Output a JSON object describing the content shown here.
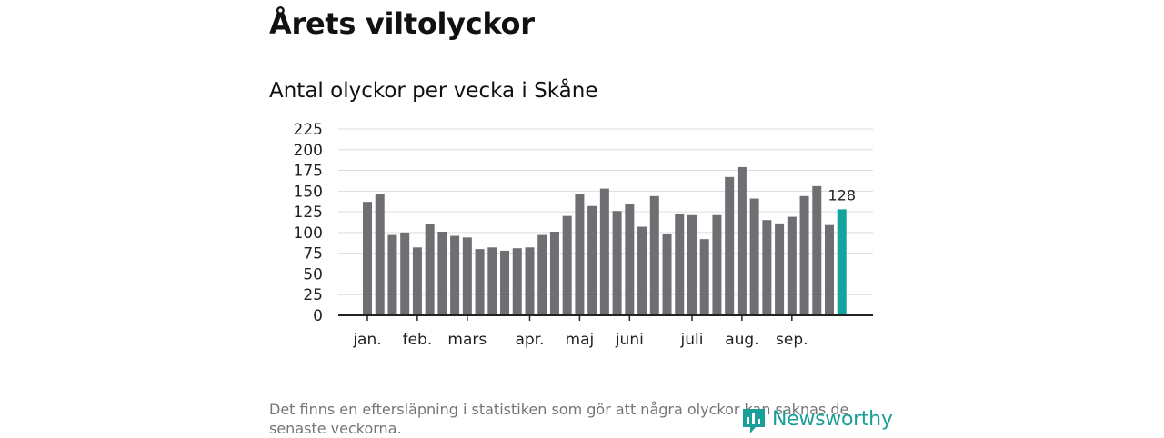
{
  "title": "Årets viltolyckor",
  "subtitle": "Antal olyckor per vecka i Skåne",
  "footnote": "Det finns en eftersläpning i statistiken som gör att några olyckor kan saknas de senaste veckorna.",
  "logo": {
    "text": "Newsworthy",
    "icon": "newsworthy-logo-icon"
  },
  "colors": {
    "bar": "#6e6e73",
    "highlight": "#13a59b",
    "grid": "#dddddd",
    "axis": "#222222"
  },
  "chart_data": {
    "type": "bar",
    "title": "Antal olyckor per vecka i Skåne",
    "xlabel": "",
    "ylabel": "",
    "ylim": [
      0,
      225
    ],
    "yticks": [
      0,
      25,
      50,
      75,
      100,
      125,
      150,
      175,
      200,
      225
    ],
    "grid": true,
    "categories": [
      "1",
      "2",
      "3",
      "4",
      "5",
      "6",
      "7",
      "8",
      "9",
      "10",
      "11",
      "12",
      "13",
      "14",
      "15",
      "16",
      "17",
      "18",
      "19",
      "20",
      "21",
      "22",
      "23",
      "24",
      "25",
      "26",
      "27",
      "28",
      "29",
      "30",
      "31",
      "32",
      "33",
      "34",
      "35",
      "36",
      "37",
      "38",
      "39"
    ],
    "values": [
      137,
      147,
      97,
      100,
      82,
      110,
      101,
      96,
      94,
      80,
      82,
      78,
      81,
      82,
      97,
      101,
      120,
      147,
      132,
      153,
      126,
      134,
      107,
      144,
      98,
      123,
      121,
      92,
      121,
      167,
      179,
      141,
      115,
      111,
      119,
      144,
      156,
      109,
      128
    ],
    "highlight_index": 38,
    "highlight_label": "128",
    "month_labels": [
      {
        "label": "jan.",
        "week": 1
      },
      {
        "label": "feb.",
        "week": 5
      },
      {
        "label": "mars",
        "week": 9
      },
      {
        "label": "apr.",
        "week": 14
      },
      {
        "label": "maj",
        "week": 18
      },
      {
        "label": "juni",
        "week": 22
      },
      {
        "label": "juli",
        "week": 27
      },
      {
        "label": "aug.",
        "week": 31
      },
      {
        "label": "sep.",
        "week": 35
      }
    ]
  }
}
